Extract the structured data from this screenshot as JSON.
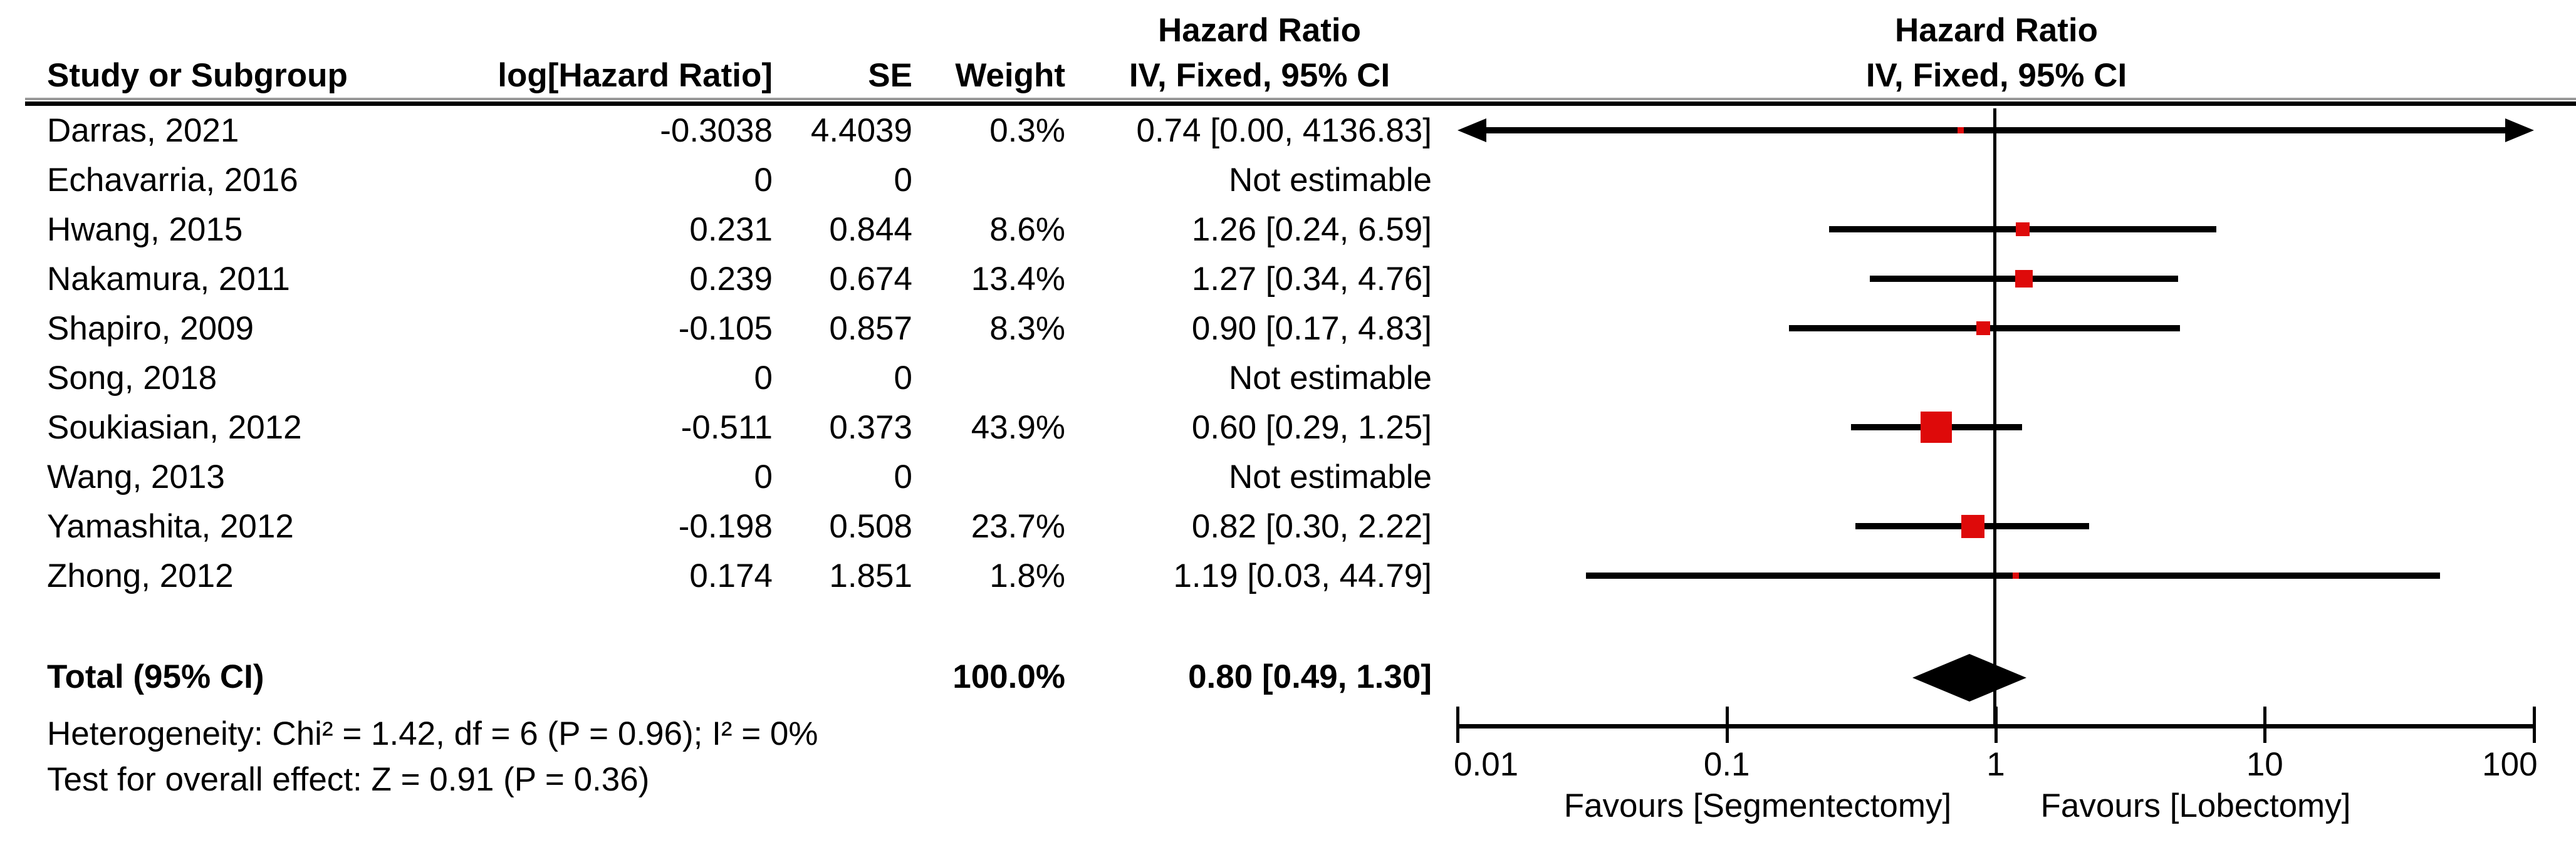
{
  "colors": {
    "marker_red": "#DE0A0A",
    "text": "#000000",
    "rule_gray": "#9a9a9a"
  },
  "header": {
    "study_col": "Study or Subgroup",
    "loghr_col": "log[Hazard Ratio]",
    "se_col": "SE",
    "weight_col": "Weight",
    "table_effect_line1": "Hazard Ratio",
    "table_effect_line2": "IV, Fixed, 95% CI",
    "plot_effect_line1": "Hazard Ratio",
    "plot_effect_line2": "IV, Fixed, 95% CI"
  },
  "footer": {
    "heterogeneity": "Heterogeneity: Chi² = 1.42, df = 6 (P = 0.96); I² = 0%",
    "overall_effect": "Test for overall effect: Z = 0.91 (P = 0.36)"
  },
  "axis": {
    "tick_labels": [
      "0.01",
      "0.1",
      "1",
      "10",
      "100"
    ],
    "favours_left": "Favours [Segmentectomy]",
    "favours_right": "Favours [Lobectomy]"
  },
  "chart_data": {
    "type": "forest",
    "x_scale": "log10",
    "x_ticks": [
      0.01,
      0.1,
      1,
      10,
      100
    ],
    "x_range": [
      0.01,
      100
    ],
    "effect_measure": "Hazard Ratio",
    "method": "IV, Fixed, 95% CI",
    "studies": [
      {
        "study": "Darras, 2021",
        "log_hr": "-0.3038",
        "se": "4.4039",
        "weight": "0.3%",
        "weight_pct": 0.3,
        "hr": 0.74,
        "ci_low": 0.005,
        "ci_high": 4136.83,
        "arrow_low": true,
        "arrow_high": true,
        "ci_text": "0.74 [0.00, 4136.83]"
      },
      {
        "study": "Echavarria, 2016",
        "log_hr": "0",
        "se": "0",
        "weight": "",
        "weight_pct": null,
        "hr": null,
        "ci_low": null,
        "ci_high": null,
        "arrow_low": false,
        "arrow_high": false,
        "ci_text": "Not estimable"
      },
      {
        "study": "Hwang, 2015",
        "log_hr": "0.231",
        "se": "0.844",
        "weight": "8.6%",
        "weight_pct": 8.6,
        "hr": 1.26,
        "ci_low": 0.24,
        "ci_high": 6.59,
        "arrow_low": false,
        "arrow_high": false,
        "ci_text": "1.26 [0.24, 6.59]"
      },
      {
        "study": "Nakamura, 2011",
        "log_hr": "0.239",
        "se": "0.674",
        "weight": "13.4%",
        "weight_pct": 13.4,
        "hr": 1.27,
        "ci_low": 0.34,
        "ci_high": 4.76,
        "arrow_low": false,
        "arrow_high": false,
        "ci_text": "1.27 [0.34, 4.76]"
      },
      {
        "study": "Shapiro, 2009",
        "log_hr": "-0.105",
        "se": "0.857",
        "weight": "8.3%",
        "weight_pct": 8.3,
        "hr": 0.9,
        "ci_low": 0.17,
        "ci_high": 4.83,
        "arrow_low": false,
        "arrow_high": false,
        "ci_text": "0.90 [0.17, 4.83]"
      },
      {
        "study": "Song, 2018",
        "log_hr": "0",
        "se": "0",
        "weight": "",
        "weight_pct": null,
        "hr": null,
        "ci_low": null,
        "ci_high": null,
        "arrow_low": false,
        "arrow_high": false,
        "ci_text": "Not estimable"
      },
      {
        "study": "Soukiasian, 2012",
        "log_hr": "-0.511",
        "se": "0.373",
        "weight": "43.9%",
        "weight_pct": 43.9,
        "hr": 0.6,
        "ci_low": 0.29,
        "ci_high": 1.25,
        "arrow_low": false,
        "arrow_high": false,
        "ci_text": "0.60 [0.29, 1.25]"
      },
      {
        "study": "Wang, 2013",
        "log_hr": "0",
        "se": "0",
        "weight": "",
        "weight_pct": null,
        "hr": null,
        "ci_low": null,
        "ci_high": null,
        "arrow_low": false,
        "arrow_high": false,
        "ci_text": "Not estimable"
      },
      {
        "study": "Yamashita, 2012",
        "log_hr": "-0.198",
        "se": "0.508",
        "weight": "23.7%",
        "weight_pct": 23.7,
        "hr": 0.82,
        "ci_low": 0.3,
        "ci_high": 2.22,
        "arrow_low": false,
        "arrow_high": false,
        "ci_text": "0.82 [0.30, 2.22]"
      },
      {
        "study": "Zhong, 2012",
        "log_hr": "0.174",
        "se": "1.851",
        "weight": "1.8%",
        "weight_pct": 1.8,
        "hr": 1.19,
        "ci_low": 0.03,
        "ci_high": 44.79,
        "arrow_low": false,
        "arrow_high": false,
        "ci_text": "1.19 [0.03, 44.79]"
      }
    ],
    "total": {
      "label": "Total (95% CI)",
      "weight": "100.0%",
      "hr": 0.8,
      "ci_low": 0.49,
      "ci_high": 1.3,
      "ci_text": "0.80 [0.49, 1.30]"
    }
  }
}
